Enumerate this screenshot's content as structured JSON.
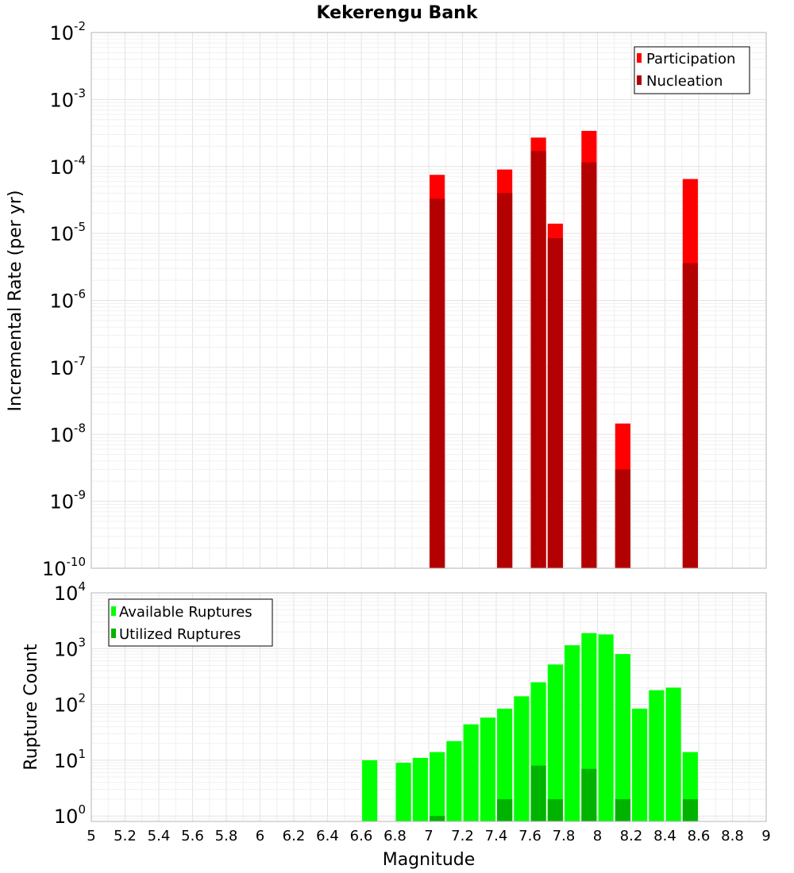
{
  "title": "Kekerengu Bank",
  "xlabel": "Magnitude",
  "x_ticks": [
    "5",
    "5.2",
    "5.4",
    "5.6",
    "5.8",
    "6",
    "6.2",
    "6.4",
    "6.6",
    "6.8",
    "7",
    "7.2",
    "7.4",
    "7.6",
    "7.8",
    "8",
    "8.2",
    "8.4",
    "8.6",
    "8.8",
    "9"
  ],
  "chart_data": [
    {
      "type": "bar",
      "name": "rate-panel",
      "ylabel": "Incremental Rate (per yr)",
      "yscale": "log",
      "xlim": [
        5,
        9
      ],
      "ylim": [
        1e-10,
        0.01
      ],
      "y_ticks": [
        {
          "base": "10",
          "exp": "-10",
          "value": 1e-10
        },
        {
          "base": "10",
          "exp": "-9",
          "value": 1e-09
        },
        {
          "base": "10",
          "exp": "-8",
          "value": 1e-08
        },
        {
          "base": "10",
          "exp": "-7",
          "value": 1e-07
        },
        {
          "base": "10",
          "exp": "-6",
          "value": 1e-06
        },
        {
          "base": "10",
          "exp": "-5",
          "value": 1e-05
        },
        {
          "base": "10",
          "exp": "-4",
          "value": 0.0001
        },
        {
          "base": "10",
          "exp": "-3",
          "value": 0.001
        },
        {
          "base": "10",
          "exp": "-2",
          "value": 0.01
        }
      ],
      "legend_position": "top-right",
      "grid": true,
      "series": [
        {
          "name": "Participation",
          "color": "#ff0000",
          "x": [
            7.05,
            7.45,
            7.65,
            7.75,
            7.95,
            8.15,
            8.55
          ],
          "values": [
            7.5e-05,
            9e-05,
            0.00027,
            1.4e-05,
            0.00034,
            1.45e-08,
            6.5e-05
          ]
        },
        {
          "name": "Nucleation",
          "color": "#b30000",
          "x": [
            7.05,
            7.45,
            7.65,
            7.75,
            7.95,
            8.15,
            8.55
          ],
          "values": [
            3.3e-05,
            4e-05,
            0.00017,
            8.5e-06,
            0.000115,
            3e-09,
            3.6e-06
          ]
        }
      ]
    },
    {
      "type": "bar",
      "name": "count-panel",
      "ylabel": "Rupture Count",
      "yscale": "log",
      "xlim": [
        5,
        9
      ],
      "ylim": [
        0.8,
        10000
      ],
      "y_ticks": [
        {
          "base": "10",
          "exp": "0",
          "value": 1
        },
        {
          "base": "10",
          "exp": "1",
          "value": 10
        },
        {
          "base": "10",
          "exp": "2",
          "value": 100
        },
        {
          "base": "10",
          "exp": "3",
          "value": 1000
        },
        {
          "base": "10",
          "exp": "4",
          "value": 10000
        }
      ],
      "legend_position": "top-left",
      "grid": true,
      "series": [
        {
          "name": "Available Ruptures",
          "color": "#00ff00",
          "x": [
            6.65,
            6.85,
            6.95,
            7.05,
            7.15,
            7.25,
            7.35,
            7.45,
            7.55,
            7.65,
            7.75,
            7.85,
            7.95,
            8.05,
            8.15,
            8.25,
            8.35,
            8.45,
            8.55
          ],
          "values": [
            10,
            9,
            11,
            14,
            22,
            44,
            58,
            84,
            140,
            250,
            520,
            1150,
            1900,
            1800,
            800,
            84,
            180,
            200,
            14
          ]
        },
        {
          "name": "Utilized Ruptures",
          "color": "#00b300",
          "x": [
            7.05,
            7.45,
            7.65,
            7.75,
            7.95,
            8.15,
            8.55
          ],
          "values": [
            1,
            2,
            8,
            2,
            7,
            2,
            2
          ]
        }
      ]
    }
  ]
}
